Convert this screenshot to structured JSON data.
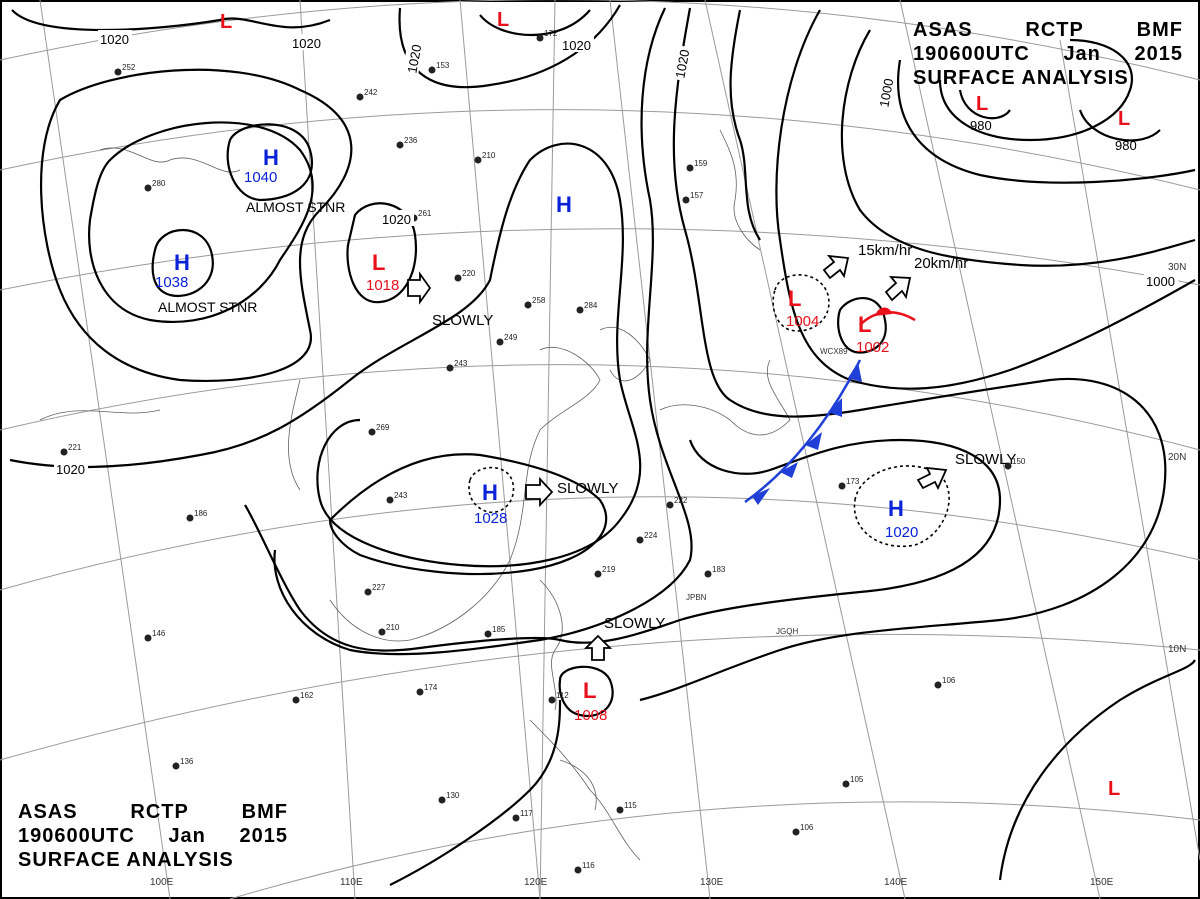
{
  "header": {
    "line1": [
      "ASAS",
      "RCTP",
      "BMF"
    ],
    "line2": [
      "190600UTC",
      "Jan",
      "2015"
    ],
    "line3": "SURFACE ANALYSIS"
  },
  "colors": {
    "high": "#0a22d8",
    "low": "#e8101a",
    "isobar": "#000000",
    "grid": "#9a9a9a",
    "cold_front": "#1f3fd6",
    "warm_front": "#e8101a"
  },
  "longitude_labels": [
    "110E",
    "120E",
    "130E",
    "140E",
    "150E"
  ],
  "longitude_label_extra": "100E",
  "latitude_labels": [
    "30N",
    "20N",
    "10N"
  ],
  "pressure_systems": [
    {
      "type": "H",
      "value": "1040"
    },
    {
      "type": "H",
      "value": "1038"
    },
    {
      "type": "H",
      "value": ""
    },
    {
      "type": "H",
      "value": "1028"
    },
    {
      "type": "H",
      "value": "1020"
    },
    {
      "type": "L",
      "value": "1018"
    },
    {
      "type": "L",
      "value": "1004"
    },
    {
      "type": "L",
      "value": "1002"
    },
    {
      "type": "L",
      "value": "1008"
    },
    {
      "type": "L",
      "value": "980"
    },
    {
      "type": "L",
      "value": "980"
    },
    {
      "type": "L",
      "value": ""
    },
    {
      "type": "L",
      "value": ""
    },
    {
      "type": "L",
      "value": ""
    }
  ],
  "isobar_labels": [
    "1020",
    "1020",
    "1020",
    "1020",
    "1020",
    "1020",
    "1020",
    "1000",
    "1000"
  ],
  "movement_labels": [
    "SLOWLY",
    "SLOWLY",
    "SLOWLY",
    "SLOWLY",
    "15km/hr",
    "20km/hr"
  ],
  "notes": [
    "ALMOST STNR",
    "ALMOST STNR"
  ],
  "station_ids": [
    "JPBN",
    "JGQH",
    "WCX89"
  ],
  "station_samples": [
    "280",
    "252",
    "242",
    "236",
    "210",
    "153",
    "172",
    "159",
    "157",
    "261",
    "284",
    "220",
    "258",
    "249",
    "243",
    "269",
    "221",
    "186",
    "243",
    "227",
    "210",
    "185",
    "174",
    "162",
    "146",
    "136",
    "130",
    "117",
    "116",
    "106",
    "105",
    "106",
    "150",
    "173",
    "222",
    "224",
    "219",
    "183",
    "115",
    "112"
  ]
}
